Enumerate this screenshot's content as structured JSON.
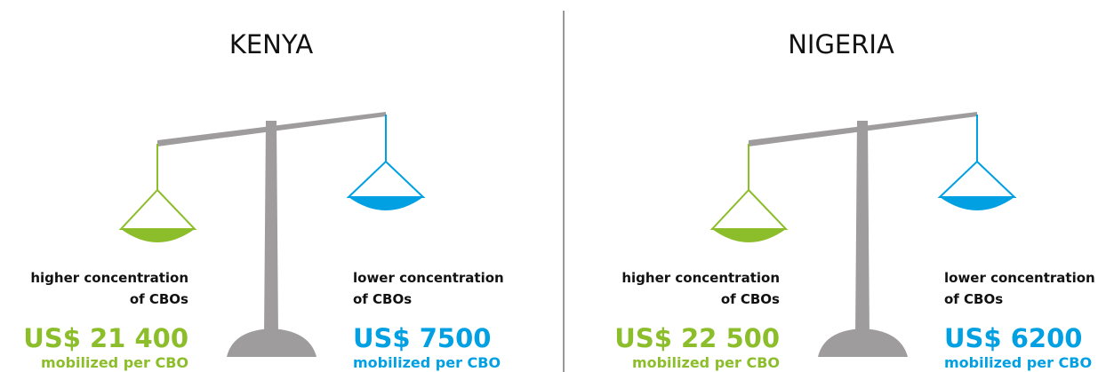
{
  "panels": [
    {
      "title": "KENYA",
      "left": {
        "label": [
          "higher concentration",
          "of CBOs"
        ],
        "amount": "US$ 21 400",
        "note": "mobilized per CBO"
      },
      "right": {
        "label": [
          "lower concentration",
          "of CBOs"
        ],
        "amount": "US$ 7500",
        "note": "mobilized per CBO"
      }
    },
    {
      "title": "NIGERIA",
      "left": {
        "label": [
          "higher concentration",
          "of CBOs"
        ],
        "amount": "US$ 22 500",
        "note": "mobilized per CBO"
      },
      "right": {
        "label": [
          "lower concentration",
          "of CBOs"
        ],
        "amount": "US$ 6200",
        "note": "mobilized per CBO"
      }
    }
  ]
}
